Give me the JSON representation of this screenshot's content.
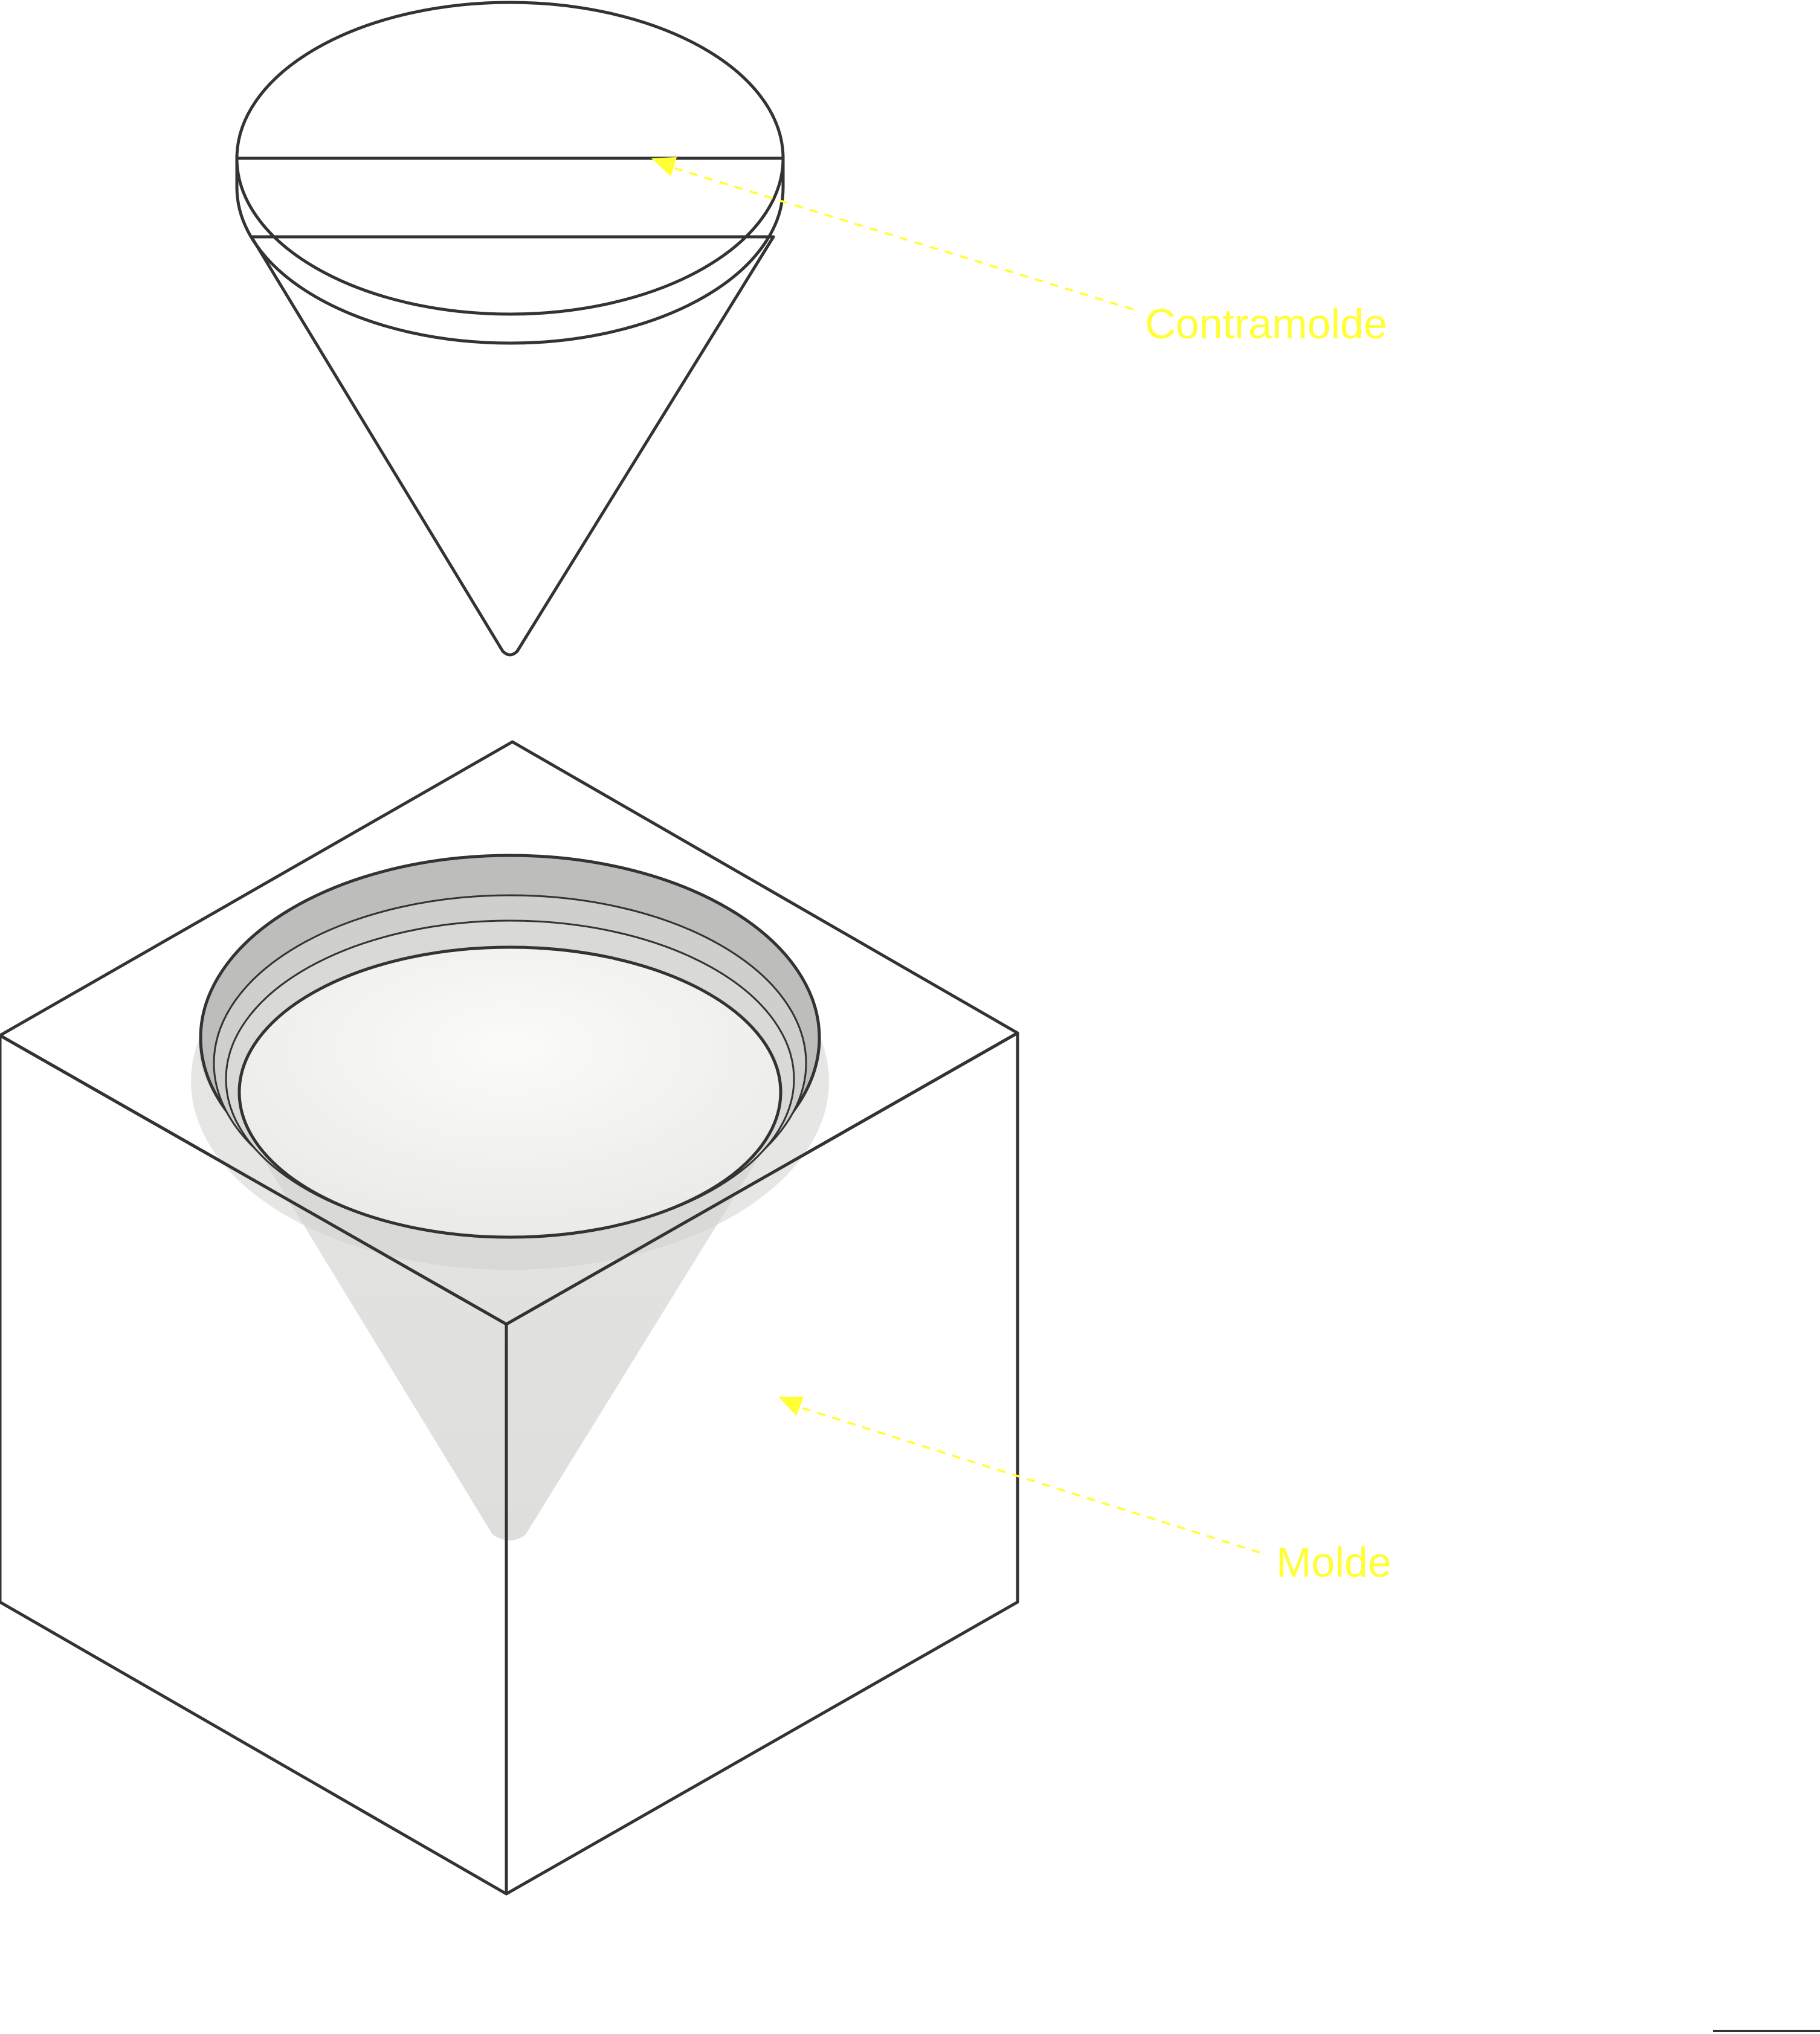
{
  "diagram": {
    "labels": {
      "counter_mold": "Contramolde",
      "mold": "Molde"
    },
    "colors": {
      "label": "#ffff33",
      "outline": "#333333",
      "body_fill": "#f3f3f1",
      "cone_fill": "#e2e2e0",
      "cavity_shadow": "#c8c8c6"
    }
  }
}
